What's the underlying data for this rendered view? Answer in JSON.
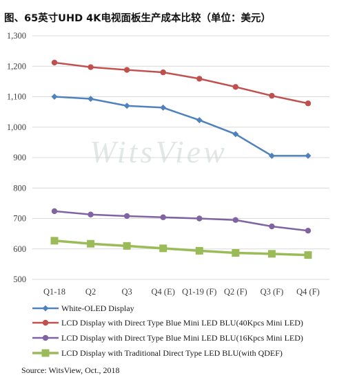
{
  "title": "图、65英寸UHD 4K电视面板生产成本比较（单位：美元）",
  "source": "Source: WitsView, Oct., 2018",
  "watermark": "WitsView",
  "chart_data": {
    "type": "line",
    "title": "图、65英寸UHD 4K电视面板生产成本比较（单位：美元）",
    "xlabel": "",
    "ylabel": "",
    "ylim": [
      500,
      1300
    ],
    "yticks": [
      500,
      600,
      700,
      800,
      900,
      1000,
      1100,
      1200,
      1300
    ],
    "ytick_labels": [
      "500",
      "600",
      "700",
      "800",
      "900",
      "1,000",
      "1,100",
      "1,200",
      "1,300"
    ],
    "grid": true,
    "legend_position": "bottom",
    "categories": [
      "Q1-18",
      "Q2",
      "Q3",
      "Q4 (E)",
      "Q1-19 (F)",
      "Q2 (F)",
      "Q3 (F)",
      "Q4 (F)"
    ],
    "series": [
      {
        "name": "White-OLED Display",
        "color": "#4f81bd",
        "marker": "diamond",
        "values": [
          1100,
          1093,
          1070,
          1064,
          1023,
          977,
          906,
          906
        ]
      },
      {
        "name": "LCD Display with Direct Type Blue Mini LED BLU(40Kpcs Mini LED)",
        "color": "#c0504d",
        "marker": "circle",
        "values": [
          1212,
          1197,
          1188,
          1180,
          1159,
          1132,
          1103,
          1078
        ]
      },
      {
        "name": "LCD Display with Direct Type Blue Mini LED BLU(16Kpcs Mini LED)",
        "color": "#8064a2",
        "marker": "circle",
        "values": [
          724,
          713,
          708,
          704,
          700,
          695,
          674,
          660
        ]
      },
      {
        "name": "LCD Display with Traditional Direct Type LED BLU(with QDEF)",
        "color": "#9bbb59",
        "marker": "square",
        "values": [
          627,
          617,
          610,
          602,
          594,
          587,
          584,
          580
        ]
      }
    ]
  }
}
